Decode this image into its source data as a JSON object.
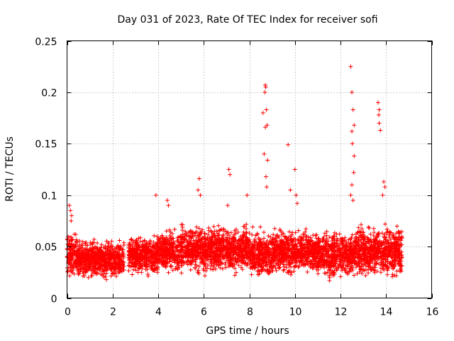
{
  "chart_data": {
    "type": "scatter",
    "title": "Day 031 of 2023, Rate Of TEC Index for receiver sofi",
    "xlabel": "GPS time / hours",
    "ylabel": "ROTI / TECUs",
    "xlim": [
      0,
      16
    ],
    "ylim": [
      0,
      0.25
    ],
    "grid": true,
    "marker": "+",
    "series_color": "#ff0000",
    "x_ticks": [
      0,
      2,
      4,
      6,
      8,
      10,
      12,
      14,
      16
    ],
    "x_tick_labels": [
      "0",
      "2",
      "4",
      "6",
      "8",
      "10",
      "12",
      "14",
      "16"
    ],
    "y_ticks": [
      0,
      0.05,
      0.1,
      0.15,
      0.2,
      0.25
    ],
    "y_tick_labels": [
      "0",
      "0.05",
      "0.1",
      "0.15",
      "0.2",
      "0.25"
    ],
    "bulk_bands": [
      {
        "x": [
          0.0,
          0.5
        ],
        "y_range": [
          0.015,
          0.07
        ]
      },
      {
        "x": [
          0.5,
          2.5
        ],
        "y_range": [
          0.015,
          0.06
        ]
      },
      {
        "x": [
          2.7,
          4.0
        ],
        "y_range": [
          0.018,
          0.065
        ]
      },
      {
        "x": [
          4.0,
          5.0
        ],
        "y_range": [
          0.02,
          0.07
        ]
      },
      {
        "x": [
          5.0,
          6.5
        ],
        "y_range": [
          0.02,
          0.075
        ]
      },
      {
        "x": [
          6.5,
          8.0
        ],
        "y_range": [
          0.02,
          0.075
        ]
      },
      {
        "x": [
          8.0,
          9.0
        ],
        "y_range": [
          0.015,
          0.07
        ]
      },
      {
        "x": [
          9.0,
          11.0
        ],
        "y_range": [
          0.02,
          0.07
        ]
      },
      {
        "x": [
          11.0,
          12.5
        ],
        "y_range": [
          0.015,
          0.07
        ]
      },
      {
        "x": [
          12.5,
          13.5
        ],
        "y_range": [
          0.015,
          0.075
        ]
      },
      {
        "x": [
          13.5,
          14.7
        ],
        "y_range": [
          0.015,
          0.075
        ]
      }
    ],
    "outliers": {
      "x": [
        0.1,
        0.15,
        0.2,
        0.18,
        3.9,
        4.4,
        4.45,
        5.8,
        5.75,
        5.85,
        7.1,
        7.15,
        7.05,
        7.9,
        8.6,
        8.7,
        8.72,
        8.68,
        8.75,
        8.78,
        8.7,
        8.65,
        8.8,
        8.73,
        8.76,
        9.7,
        9.8,
        10.0,
        10.05,
        10.1,
        12.45,
        12.5,
        12.55,
        12.6,
        12.5,
        12.52,
        12.6,
        12.58,
        12.5,
        12.45,
        12.55,
        13.65,
        13.7,
        13.68,
        13.7,
        13.75,
        13.9,
        13.95,
        13.85
      ],
      "y": [
        0.09,
        0.085,
        0.08,
        0.075,
        0.1,
        0.095,
        0.09,
        0.116,
        0.105,
        0.1,
        0.125,
        0.12,
        0.09,
        0.1,
        0.18,
        0.207,
        0.205,
        0.2,
        0.183,
        0.168,
        0.166,
        0.14,
        0.134,
        0.118,
        0.108,
        0.149,
        0.105,
        0.125,
        0.1,
        0.092,
        0.225,
        0.2,
        0.183,
        0.168,
        0.162,
        0.15,
        0.138,
        0.122,
        0.11,
        0.1,
        0.095,
        0.19,
        0.183,
        0.178,
        0.17,
        0.163,
        0.113,
        0.108,
        0.1
      ]
    }
  }
}
